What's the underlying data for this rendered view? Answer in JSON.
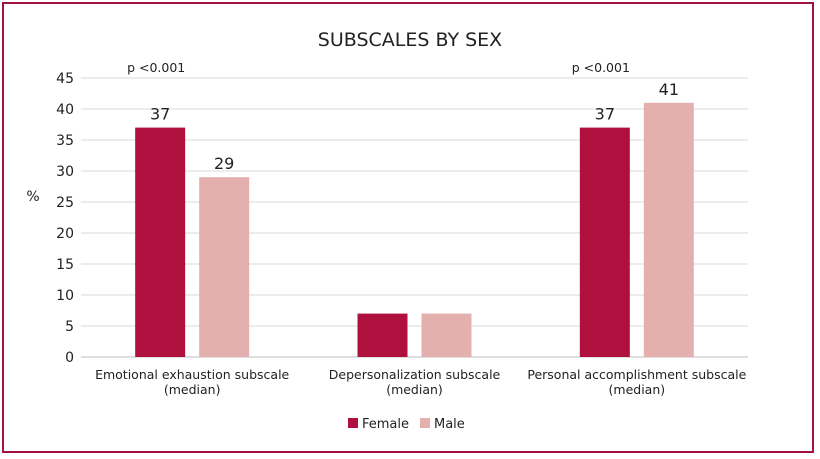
{
  "chart_data": {
    "type": "bar",
    "title": "SUBSCALES BY SEX",
    "ylabel": "%",
    "xlabel": "",
    "ylim": [
      0,
      45
    ],
    "yticks": [
      0,
      5,
      10,
      15,
      20,
      25,
      30,
      35,
      40,
      45
    ],
    "grid": true,
    "legend_position": "bottom",
    "categories": [
      [
        "Emotional exhaustion subscale",
        "(median)"
      ],
      [
        "Depersonalization subscale",
        "(median)"
      ],
      [
        "Personal accomplishment subscale",
        "(median)"
      ]
    ],
    "series": [
      {
        "name": "Female",
        "color": "#b0103e",
        "values": [
          37,
          7,
          37
        ],
        "data_labels": [
          "37",
          "",
          "37"
        ]
      },
      {
        "name": "Male",
        "color": "#e4b0ae",
        "values": [
          29,
          7,
          41
        ],
        "data_labels": [
          "29",
          "",
          "41"
        ]
      }
    ],
    "annotations": [
      "p <0.001",
      "",
      "p <0.001"
    ]
  }
}
